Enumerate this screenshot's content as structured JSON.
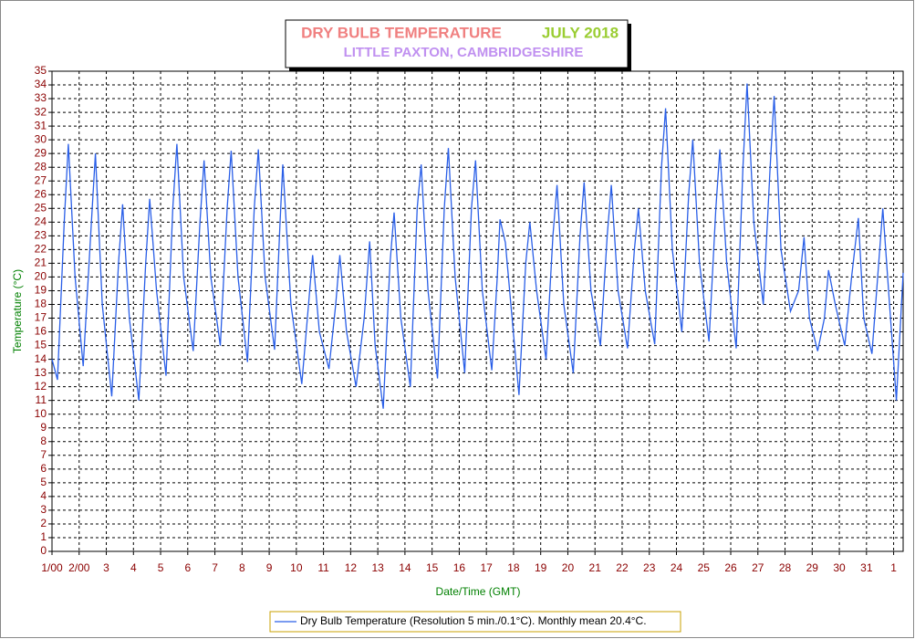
{
  "chart_data": {
    "type": "line",
    "title": "DRY BULB TEMPERATURE",
    "title_month": "JULY 2018",
    "subtitle": "LITTLE PAXTON, CAMBRIDGESHIRE",
    "xlabel": "Date/Time (GMT)",
    "ylabel": "Temperature (°C)",
    "x": [
      1.0,
      1.2,
      1.45,
      1.6,
      1.85,
      2.15,
      2.45,
      2.6,
      2.85,
      3.2,
      3.45,
      3.6,
      3.85,
      4.2,
      4.45,
      4.6,
      4.85,
      5.2,
      5.45,
      5.6,
      5.85,
      6.2,
      6.45,
      6.6,
      6.85,
      7.2,
      7.45,
      7.6,
      7.85,
      8.2,
      8.45,
      8.6,
      8.85,
      9.2,
      9.4,
      9.5,
      9.8,
      10.2,
      10.45,
      10.6,
      10.85,
      11.2,
      11.45,
      11.6,
      11.85,
      12.2,
      12.5,
      12.7,
      12.9,
      13.2,
      13.45,
      13.6,
      13.85,
      14.2,
      14.45,
      14.6,
      14.85,
      15.2,
      15.45,
      15.6,
      15.85,
      16.2,
      16.45,
      16.6,
      16.85,
      17.2,
      17.4,
      17.5,
      17.7,
      17.9,
      18.2,
      18.45,
      18.6,
      18.85,
      19.2,
      19.45,
      19.6,
      19.85,
      20.2,
      20.45,
      20.6,
      20.85,
      21.2,
      21.45,
      21.6,
      21.85,
      22.2,
      22.45,
      22.6,
      22.85,
      23.2,
      23.45,
      23.6,
      23.85,
      24.2,
      24.45,
      24.6,
      24.85,
      25.2,
      25.45,
      25.6,
      25.85,
      26.2,
      26.45,
      26.6,
      26.85,
      27.2,
      27.45,
      27.6,
      27.85,
      28.2,
      28.5,
      28.7,
      28.9,
      29.2,
      29.45,
      29.6,
      29.85,
      30.2,
      30.45,
      30.7,
      30.9,
      31.2,
      31.45,
      31.6,
      31.85,
      32.1,
      32.35
    ],
    "series": [
      {
        "name": "Dry Bulb Temperature (Resolution 5 min./0.1°C). Monthly mean 20.4°C.",
        "color": "#2a5fe8",
        "values": [
          14.0,
          12.5,
          24,
          29.7,
          20,
          13.5,
          24,
          29,
          18,
          11.3,
          21,
          25.3,
          17,
          11,
          21,
          25.7,
          19,
          12.8,
          25,
          29.7,
          20,
          14.6,
          24,
          28.5,
          20,
          15,
          25,
          29.2,
          20,
          13.8,
          25,
          29.3,
          20,
          14.7,
          24,
          28.2,
          18,
          12.2,
          18,
          21.6,
          16,
          13.3,
          18,
          21.6,
          16,
          12,
          17,
          22.6,
          15,
          10.4,
          21,
          24.7,
          17,
          12,
          25,
          28.2,
          19,
          12.6,
          25,
          29.4,
          20,
          13,
          25,
          28.5,
          19,
          13.2,
          20,
          24.2,
          22.5,
          18,
          11.4,
          21,
          24,
          19,
          14,
          23,
          26.7,
          18,
          13,
          23,
          26.9,
          19,
          15,
          23,
          26.7,
          19,
          14.8,
          22,
          25,
          19,
          15.1,
          28,
          32.3,
          22,
          16,
          26,
          30,
          21,
          15.3,
          25,
          29.3,
          21,
          14.8,
          28,
          34.1,
          24,
          18,
          28,
          33.2,
          22,
          17.5,
          19,
          22.9,
          17,
          14.6,
          17,
          20.5,
          18,
          15,
          20,
          24.3,
          17,
          14.4,
          21,
          25,
          18,
          11,
          20.3
        ]
      }
    ],
    "xlim": [
      1,
      32.35
    ],
    "xticks": [
      {
        "value": 1,
        "label": "1/00"
      },
      {
        "value": 2,
        "label": "2/00"
      },
      3,
      4,
      5,
      6,
      7,
      8,
      9,
      10,
      11,
      12,
      13,
      14,
      15,
      16,
      17,
      18,
      19,
      20,
      21,
      22,
      23,
      24,
      25,
      26,
      27,
      28,
      29,
      30,
      31,
      {
        "value": 32,
        "label": "1"
      }
    ],
    "ylim": [
      0,
      35
    ],
    "yticks": [
      0,
      1,
      2,
      3,
      4,
      5,
      6,
      7,
      8,
      9,
      10,
      11,
      12,
      13,
      14,
      15,
      16,
      17,
      18,
      19,
      20,
      21,
      22,
      23,
      24,
      25,
      26,
      27,
      28,
      29,
      30,
      31,
      32,
      33,
      34,
      35
    ],
    "grid": true
  }
}
